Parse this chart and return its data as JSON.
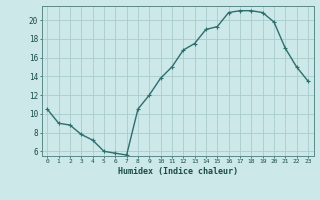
{
  "x": [
    0,
    1,
    2,
    3,
    4,
    5,
    6,
    7,
    8,
    9,
    10,
    11,
    12,
    13,
    14,
    15,
    16,
    17,
    18,
    19,
    20,
    21,
    22,
    23
  ],
  "y": [
    10.5,
    9.0,
    8.8,
    7.8,
    7.2,
    6.0,
    5.8,
    5.6,
    10.5,
    12.0,
    13.8,
    15.0,
    16.8,
    17.5,
    19.0,
    19.3,
    20.8,
    21.0,
    21.0,
    20.8,
    19.8,
    17.0,
    15.0,
    13.5
  ],
  "line_color": "#2d6e6e",
  "marker": "+",
  "marker_size": 3.5,
  "marker_lw": 0.8,
  "line_width": 1.0,
  "bg_color": "#cce8e8",
  "grid_color": "#aacccc",
  "xlabel": "Humidex (Indice chaleur)",
  "ylabel_ticks": [
    6,
    8,
    10,
    12,
    14,
    16,
    18,
    20
  ],
  "xtick_labels": [
    "0",
    "1",
    "2",
    "3",
    "4",
    "5",
    "6",
    "7",
    "8",
    "9",
    "10",
    "11",
    "12",
    "13",
    "14",
    "15",
    "16",
    "17",
    "18",
    "19",
    "20",
    "21",
    "22",
    "23"
  ],
  "ylim": [
    5.5,
    21.5
  ],
  "xlim": [
    -0.5,
    23.5
  ]
}
